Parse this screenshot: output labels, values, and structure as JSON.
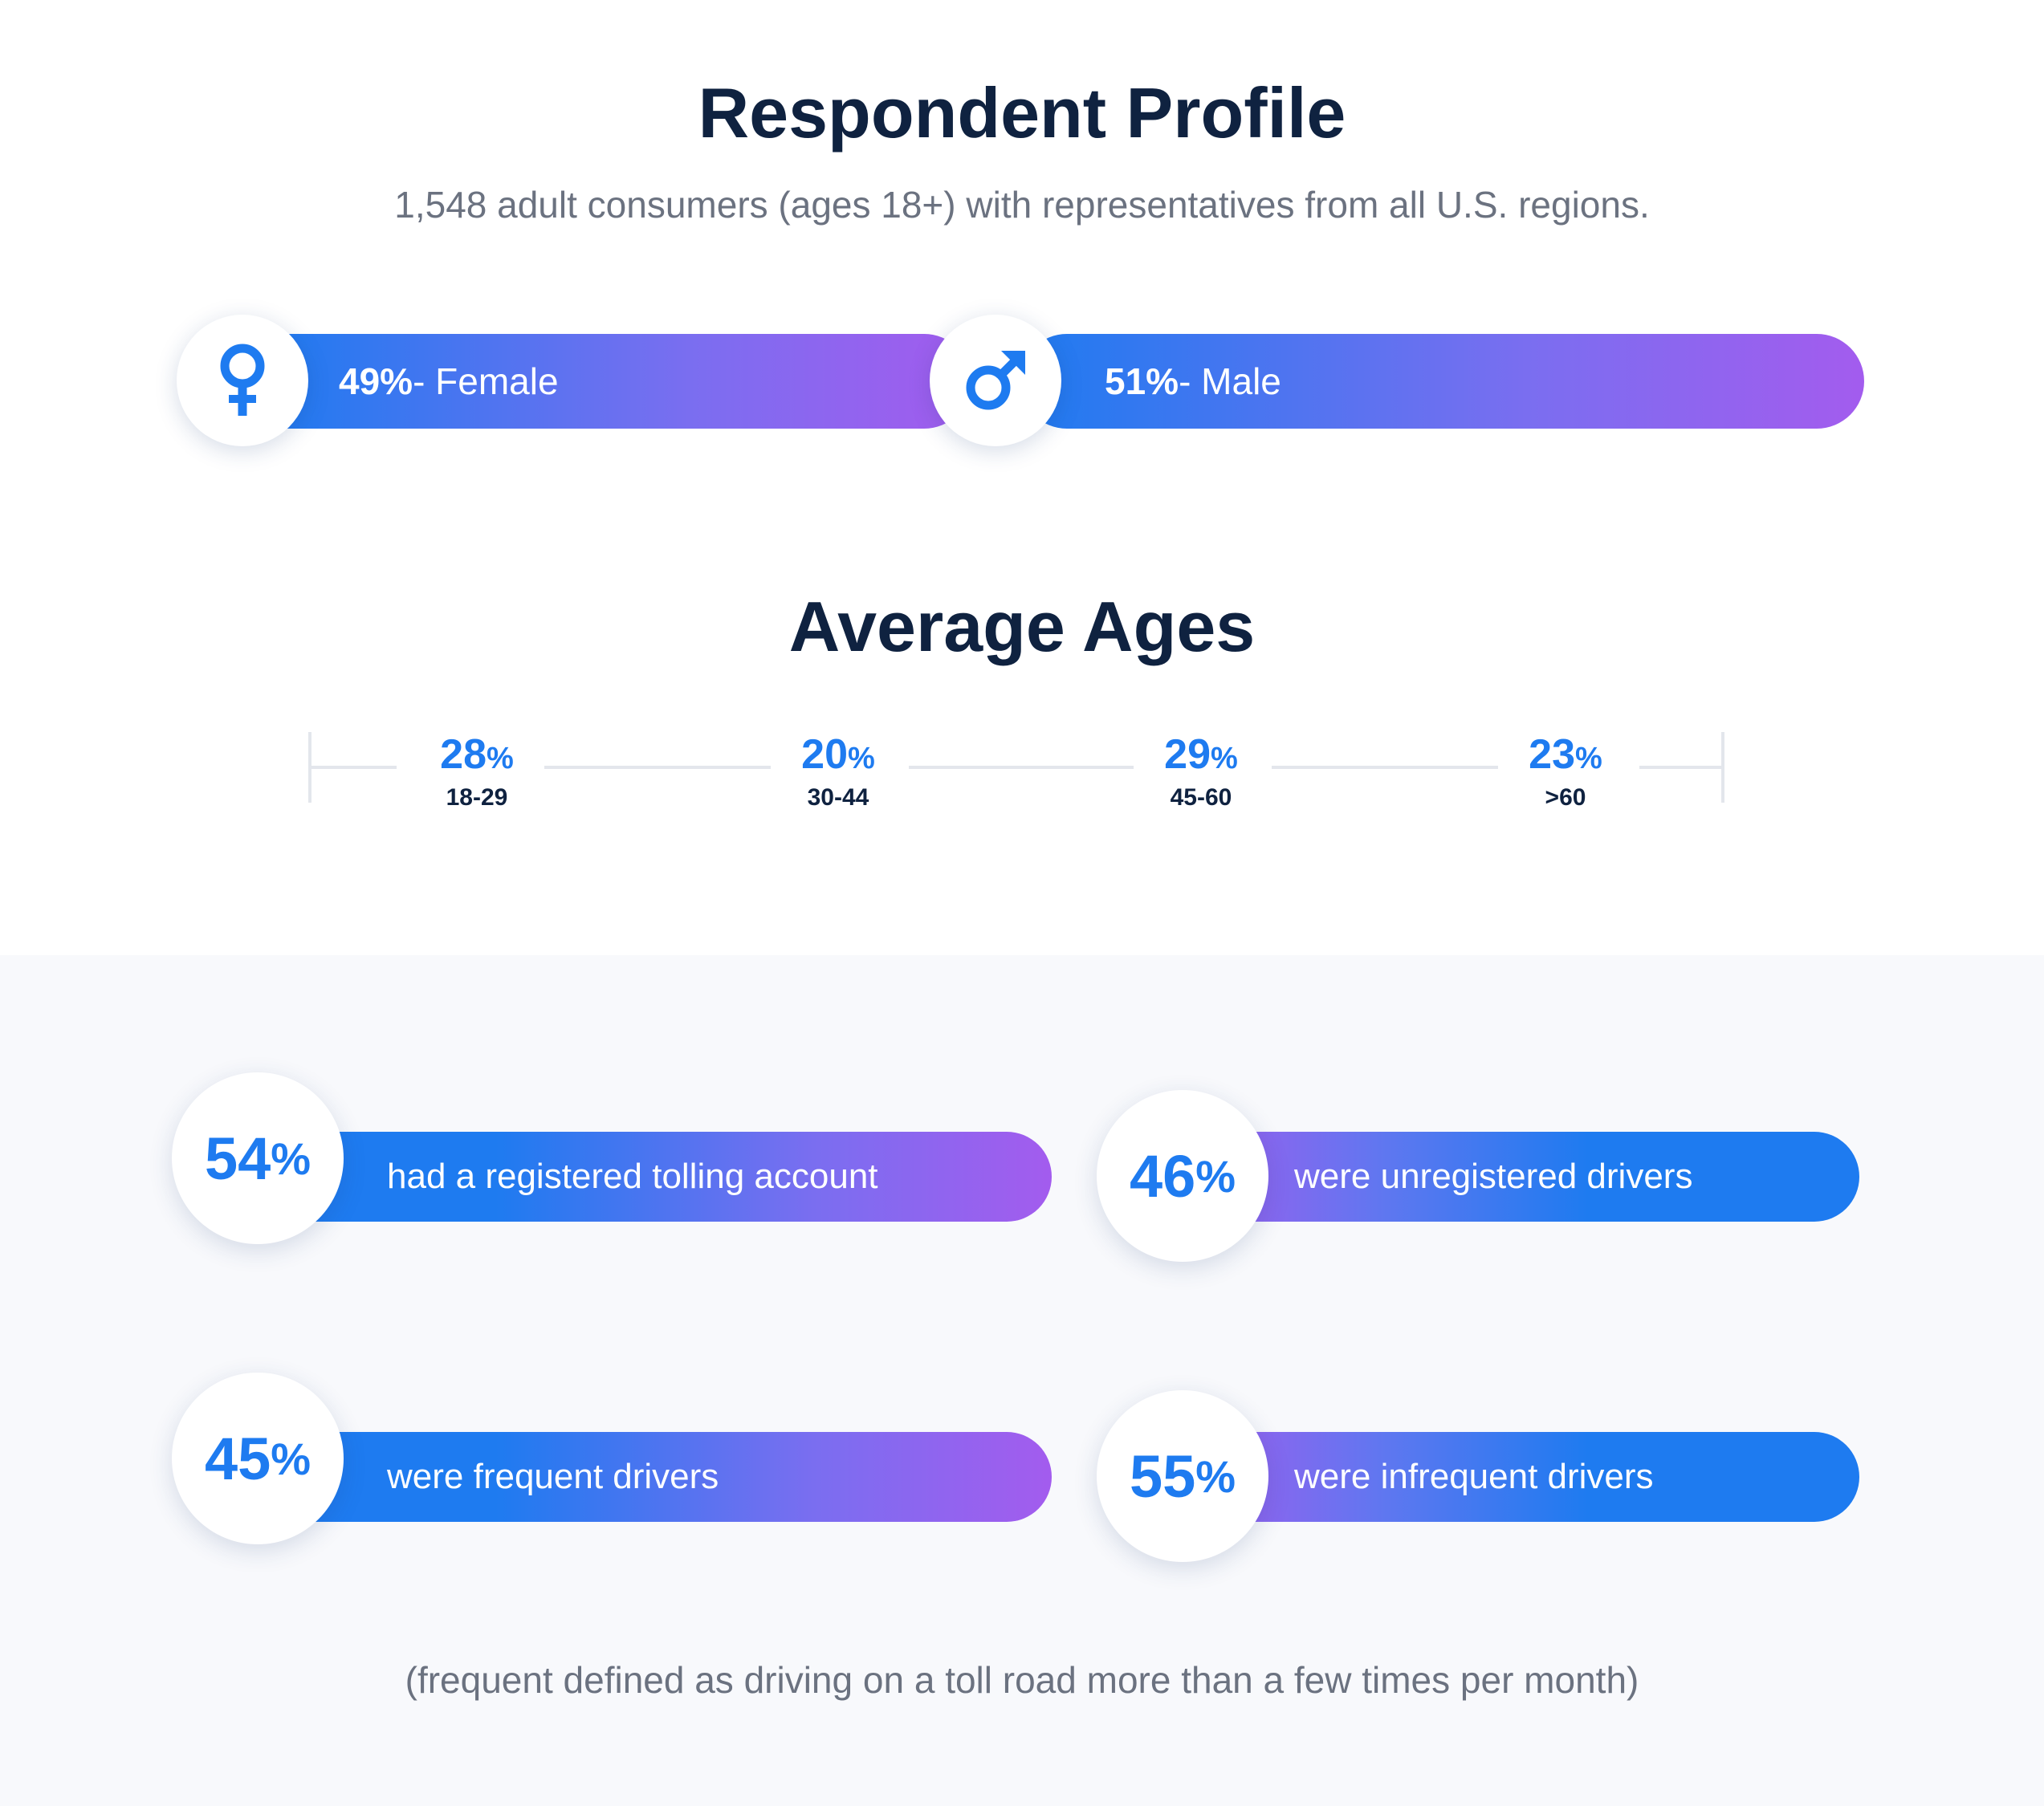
{
  "profile": {
    "title": "Respondent Profile",
    "subtitle": "1,548 adult consumers (ages 18+) with representatives from all U.S. regions.",
    "female": {
      "pct": "49%",
      "label": " - Female",
      "icon": "female-symbol-icon"
    },
    "male": {
      "pct": "51%",
      "label": " - Male",
      "icon": "male-symbol-icon"
    }
  },
  "ages": {
    "title": "Average Ages",
    "items": [
      {
        "value": "28",
        "sign": "%",
        "range": "18-29"
      },
      {
        "value": "20",
        "sign": "%",
        "range": "30-44"
      },
      {
        "value": "29",
        "sign": "%",
        "range": "45-60"
      },
      {
        "value": "23",
        "sign": "%",
        "range": ">60"
      }
    ]
  },
  "stats": [
    {
      "value": "54",
      "sign": "%",
      "text": "had a registered tolling account"
    },
    {
      "value": "46",
      "sign": "%",
      "text": "were unregistered drivers"
    },
    {
      "value": "45",
      "sign": "%",
      "text": "were frequent drivers"
    },
    {
      "value": "55",
      "sign": "%",
      "text": "were infrequent drivers"
    }
  ],
  "footnote": "(frequent defined as driving on a toll road more than a few times per month)",
  "colors": {
    "accent_blue": "#1e7bf0",
    "accent_purple": "#a35cee",
    "title": "#0f2240",
    "muted": "#6b7280"
  }
}
